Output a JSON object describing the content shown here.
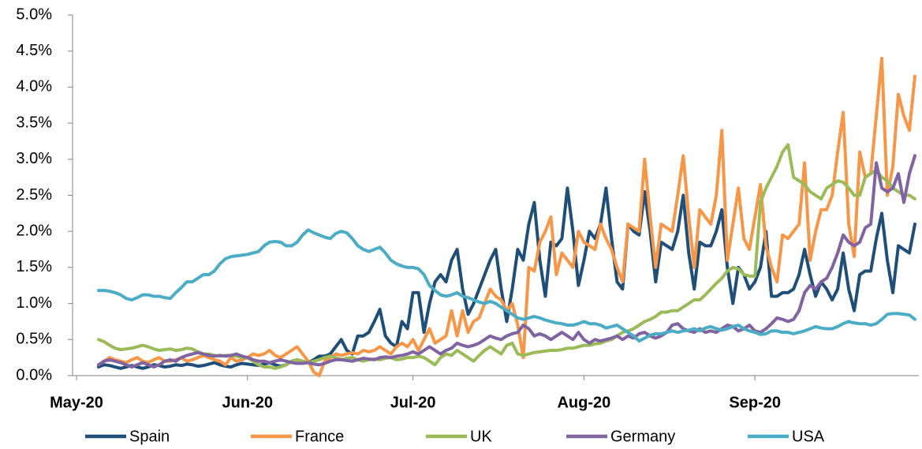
{
  "chart_data": {
    "type": "line",
    "categories": [
      "May-20",
      null,
      null,
      null,
      null,
      null,
      null,
      null,
      null,
      null,
      null,
      null,
      null,
      null,
      null,
      null,
      null,
      null,
      null,
      null,
      null,
      null,
      null,
      null,
      null,
      null,
      null,
      null,
      null,
      null,
      null,
      "Jun-20",
      null,
      null,
      null,
      null,
      null,
      null,
      null,
      null,
      null,
      null,
      null,
      null,
      null,
      null,
      null,
      null,
      null,
      null,
      null,
      null,
      null,
      null,
      null,
      null,
      null,
      null,
      null,
      null,
      null,
      "Jul-20",
      null,
      null,
      null,
      null,
      null,
      null,
      null,
      null,
      null,
      null,
      null,
      null,
      null,
      null,
      null,
      null,
      null,
      null,
      null,
      null,
      null,
      null,
      null,
      null,
      null,
      null,
      null,
      null,
      null,
      null,
      "Aug-20",
      null,
      null,
      null,
      null,
      null,
      null,
      null,
      null,
      null,
      null,
      null,
      null,
      null,
      null,
      null,
      null,
      null,
      null,
      null,
      null,
      null,
      null,
      null,
      null,
      null,
      null,
      null,
      null,
      null,
      null,
      "Sep-20",
      null,
      null,
      null,
      null,
      null,
      null,
      null,
      null,
      null,
      null,
      null,
      null,
      null,
      null,
      null,
      null,
      null,
      null,
      null,
      null,
      null,
      null,
      null,
      null,
      null,
      null,
      null,
      null,
      null
    ],
    "series": [
      {
        "name": "Spain",
        "color": "#1f4e79",
        "values": [
          null,
          null,
          null,
          null,
          0.12,
          0.15,
          0.14,
          0.12,
          0.1,
          0.12,
          0.14,
          0.12,
          0.1,
          0.12,
          0.15,
          0.14,
          0.12,
          0.13,
          0.15,
          0.14,
          0.16,
          0.15,
          0.13,
          0.14,
          0.16,
          0.18,
          0.15,
          0.13,
          0.12,
          0.15,
          0.17,
          0.16,
          0.15,
          0.14,
          0.16,
          0.18,
          0.15,
          0.13,
          0.15,
          0.2,
          0.22,
          0.2,
          0.18,
          0.22,
          0.27,
          0.27,
          0.3,
          0.4,
          0.5,
          0.35,
          0.3,
          0.55,
          0.55,
          0.6,
          0.75,
          0.92,
          0.55,
          0.45,
          0.4,
          0.75,
          0.65,
          1.15,
          1.15,
          0.6,
          1.0,
          1.3,
          1.4,
          1.3,
          1.6,
          1.75,
          1.2,
          0.85,
          1.0,
          1.2,
          1.4,
          1.6,
          1.75,
          1.2,
          0.75,
          1.2,
          1.75,
          1.6,
          2.1,
          2.4,
          1.6,
          1.1,
          1.85,
          1.8,
          1.9,
          2.6,
          2.0,
          1.25,
          1.6,
          2.0,
          1.9,
          2.1,
          2.6,
          1.9,
          1.3,
          1.2,
          2.1,
          2.0,
          1.95,
          2.55,
          2.0,
          1.3,
          1.85,
          1.8,
          1.75,
          2.0,
          2.5,
          1.7,
          1.2,
          1.85,
          1.8,
          1.8,
          2.0,
          2.3,
          1.5,
          1.0,
          1.5,
          1.4,
          1.2,
          1.3,
          1.5,
          2.0,
          1.1,
          1.1,
          1.15,
          1.15,
          1.2,
          1.4,
          1.75,
          1.4,
          1.1,
          1.3,
          1.2,
          1.05,
          1.2,
          1.7,
          1.2,
          0.9,
          1.4,
          1.45,
          1.45,
          1.9,
          2.25,
          1.6,
          1.15,
          1.8,
          1.75,
          1.7,
          2.1
        ]
      },
      {
        "name": "France",
        "color": "#f79646",
        "values": [
          null,
          null,
          null,
          null,
          0.15,
          0.2,
          0.25,
          0.22,
          0.2,
          0.18,
          0.22,
          0.25,
          0.2,
          0.18,
          0.22,
          0.25,
          0.2,
          0.2,
          0.22,
          0.25,
          0.2,
          0.22,
          0.25,
          0.28,
          0.25,
          0.22,
          0.2,
          0.15,
          0.25,
          0.2,
          0.22,
          0.25,
          0.3,
          0.28,
          0.3,
          0.35,
          0.28,
          0.25,
          0.3,
          0.35,
          0.4,
          0.3,
          0.2,
          0.05,
          0.0,
          0.2,
          0.25,
          0.3,
          0.28,
          0.3,
          0.32,
          0.3,
          0.35,
          0.33,
          0.35,
          0.4,
          0.35,
          0.3,
          0.4,
          0.45,
          0.4,
          0.5,
          0.35,
          0.5,
          0.65,
          0.45,
          0.5,
          0.55,
          0.9,
          0.55,
          0.9,
          0.6,
          0.75,
          0.8,
          1.0,
          1.2,
          1.1,
          1.05,
          0.9,
          1.0,
          0.7,
          0.25,
          1.5,
          1.45,
          1.85,
          2.0,
          2.2,
          1.4,
          1.7,
          1.6,
          1.5,
          2.0,
          1.85,
          1.8,
          1.75,
          2.1,
          1.9,
          1.75,
          1.5,
          1.3,
          2.1,
          2.05,
          2.0,
          3.0,
          2.2,
          1.5,
          2.1,
          2.05,
          2.0,
          2.5,
          3.05,
          2.2,
          1.5,
          2.3,
          2.2,
          2.1,
          2.5,
          3.4,
          1.6,
          2.1,
          2.6,
          1.9,
          1.75,
          2.2,
          2.65,
          1.8,
          1.5,
          1.3,
          1.95,
          1.9,
          2.0,
          2.1,
          2.95,
          1.6,
          2.0,
          2.3,
          2.3,
          2.5,
          3.1,
          3.65,
          2.1,
          1.65,
          3.1,
          2.75,
          2.8,
          3.6,
          4.4,
          2.5,
          2.9,
          3.9,
          3.6,
          3.4,
          4.15
        ]
      },
      {
        "name": "UK",
        "color": "#9bbb59",
        "values": [
          null,
          null,
          null,
          null,
          0.5,
          0.47,
          0.42,
          0.38,
          0.36,
          0.37,
          0.38,
          0.4,
          0.42,
          0.4,
          0.37,
          0.35,
          0.36,
          0.37,
          0.35,
          0.36,
          0.38,
          0.37,
          0.33,
          0.3,
          0.3,
          0.28,
          0.27,
          0.28,
          0.28,
          0.27,
          0.25,
          0.25,
          0.2,
          0.15,
          0.12,
          0.12,
          0.1,
          0.12,
          0.15,
          0.2,
          0.22,
          0.2,
          0.18,
          0.2,
          0.22,
          0.25,
          0.27,
          0.25,
          0.22,
          0.24,
          0.25,
          0.22,
          0.2,
          0.22,
          0.23,
          0.22,
          0.24,
          0.25,
          0.22,
          0.23,
          0.25,
          0.25,
          0.27,
          0.25,
          0.2,
          0.15,
          0.25,
          0.3,
          0.28,
          0.35,
          0.3,
          0.25,
          0.2,
          0.28,
          0.35,
          0.4,
          0.35,
          0.3,
          0.42,
          0.45,
          0.3,
          0.28,
          0.3,
          0.32,
          0.33,
          0.34,
          0.35,
          0.35,
          0.36,
          0.38,
          0.38,
          0.4,
          0.42,
          0.42,
          0.44,
          0.45,
          0.48,
          0.5,
          0.55,
          0.6,
          0.62,
          0.65,
          0.7,
          0.75,
          0.78,
          0.82,
          0.88,
          0.88,
          0.9,
          0.9,
          0.95,
          1.0,
          1.05,
          1.05,
          1.12,
          1.2,
          1.28,
          1.35,
          1.45,
          1.5,
          1.48,
          1.4,
          1.38,
          1.38,
          2.4,
          2.6,
          2.75,
          2.9,
          3.1,
          3.2,
          2.75,
          2.7,
          2.65,
          2.55,
          2.5,
          2.45,
          2.6,
          2.65,
          2.7,
          2.68,
          2.6,
          2.5,
          2.5,
          2.75,
          2.8,
          2.85,
          2.75,
          2.7,
          2.6,
          2.55,
          2.5,
          2.5,
          2.45
        ]
      },
      {
        "name": "Germany",
        "color": "#8064a2",
        "values": [
          null,
          null,
          null,
          null,
          0.15,
          0.2,
          0.22,
          0.2,
          0.18,
          0.15,
          0.12,
          0.15,
          0.18,
          0.15,
          0.12,
          0.15,
          0.2,
          0.22,
          0.2,
          0.25,
          0.28,
          0.3,
          0.32,
          0.3,
          0.28,
          0.27,
          0.28,
          0.27,
          0.28,
          0.3,
          0.27,
          0.25,
          0.22,
          0.2,
          0.2,
          0.18,
          0.2,
          0.22,
          0.2,
          0.18,
          0.17,
          0.17,
          0.18,
          0.16,
          0.15,
          0.17,
          0.2,
          0.22,
          0.22,
          0.21,
          0.2,
          0.22,
          0.24,
          0.23,
          0.22,
          0.25,
          0.26,
          0.25,
          0.27,
          0.28,
          0.3,
          0.33,
          0.3,
          0.35,
          0.4,
          0.35,
          0.3,
          0.35,
          0.38,
          0.45,
          0.42,
          0.4,
          0.42,
          0.45,
          0.5,
          0.55,
          0.52,
          0.5,
          0.55,
          0.58,
          0.6,
          0.7,
          0.65,
          0.55,
          0.58,
          0.55,
          0.5,
          0.55,
          0.6,
          0.55,
          0.5,
          0.6,
          0.5,
          0.45,
          0.5,
          0.48,
          0.5,
          0.52,
          0.55,
          0.5,
          0.55,
          0.52,
          0.58,
          0.6,
          0.55,
          0.52,
          0.55,
          0.6,
          0.7,
          0.72,
          0.65,
          0.62,
          0.6,
          0.65,
          0.6,
          0.62,
          0.6,
          0.65,
          0.7,
          0.68,
          0.62,
          0.65,
          0.7,
          0.62,
          0.6,
          0.65,
          0.72,
          0.8,
          0.78,
          0.75,
          0.78,
          0.9,
          1.15,
          1.25,
          1.2,
          1.3,
          1.35,
          1.5,
          1.7,
          1.95,
          1.85,
          1.8,
          1.85,
          2.05,
          2.1,
          2.95,
          2.6,
          2.55,
          2.6,
          2.8,
          2.4,
          2.8,
          3.05
        ]
      },
      {
        "name": "USA",
        "color": "#4bacc6",
        "values": [
          null,
          null,
          null,
          null,
          1.18,
          1.18,
          1.17,
          1.15,
          1.12,
          1.07,
          1.05,
          1.08,
          1.12,
          1.12,
          1.1,
          1.1,
          1.08,
          1.07,
          1.15,
          1.22,
          1.3,
          1.3,
          1.35,
          1.4,
          1.4,
          1.45,
          1.55,
          1.62,
          1.65,
          1.66,
          1.67,
          1.68,
          1.7,
          1.72,
          1.8,
          1.85,
          1.86,
          1.85,
          1.8,
          1.8,
          1.85,
          1.95,
          2.02,
          1.98,
          1.95,
          1.92,
          1.9,
          1.97,
          2.0,
          1.98,
          1.9,
          1.8,
          1.75,
          1.72,
          1.75,
          1.78,
          1.7,
          1.6,
          1.55,
          1.52,
          1.5,
          1.5,
          1.48,
          1.4,
          1.25,
          1.18,
          1.12,
          1.1,
          1.12,
          1.15,
          1.1,
          1.08,
          1.05,
          1.02,
          1.0,
          1.03,
          1.0,
          0.95,
          0.9,
          0.85,
          0.8,
          0.78,
          0.8,
          0.82,
          0.8,
          0.77,
          0.75,
          0.73,
          0.72,
          0.7,
          0.7,
          0.72,
          0.75,
          0.72,
          0.72,
          0.7,
          0.66,
          0.68,
          0.7,
          0.65,
          0.6,
          0.55,
          0.48,
          0.52,
          0.56,
          0.58,
          0.58,
          0.6,
          0.62,
          0.6,
          0.62,
          0.63,
          0.65,
          0.62,
          0.66,
          0.68,
          0.65,
          0.63,
          0.65,
          0.68,
          0.7,
          0.65,
          0.62,
          0.6,
          0.57,
          0.58,
          0.62,
          0.62,
          0.6,
          0.6,
          0.58,
          0.6,
          0.62,
          0.65,
          0.68,
          0.66,
          0.65,
          0.65,
          0.68,
          0.72,
          0.75,
          0.73,
          0.72,
          0.72,
          0.7,
          0.72,
          0.78,
          0.85,
          0.86,
          0.86,
          0.85,
          0.84,
          0.78
        ]
      }
    ],
    "ylim": [
      0,
      5
    ],
    "yticks": [
      {
        "value": 0,
        "label": "0.0%"
      },
      {
        "value": 0.5,
        "label": "0.5%"
      },
      {
        "value": 1,
        "label": "1.0%"
      },
      {
        "value": 1.5,
        "label": "1.5%"
      },
      {
        "value": 2,
        "label": "2.0%"
      },
      {
        "value": 2.5,
        "label": "2.5%"
      },
      {
        "value": 3,
        "label": "3.0%"
      },
      {
        "value": 3.5,
        "label": "3.5%"
      },
      {
        "value": 4,
        "label": "4.0%"
      },
      {
        "value": 4.5,
        "label": "4.5%"
      },
      {
        "value": 5,
        "label": "5.0%"
      }
    ],
    "grid": false,
    "legend": "bottom"
  }
}
